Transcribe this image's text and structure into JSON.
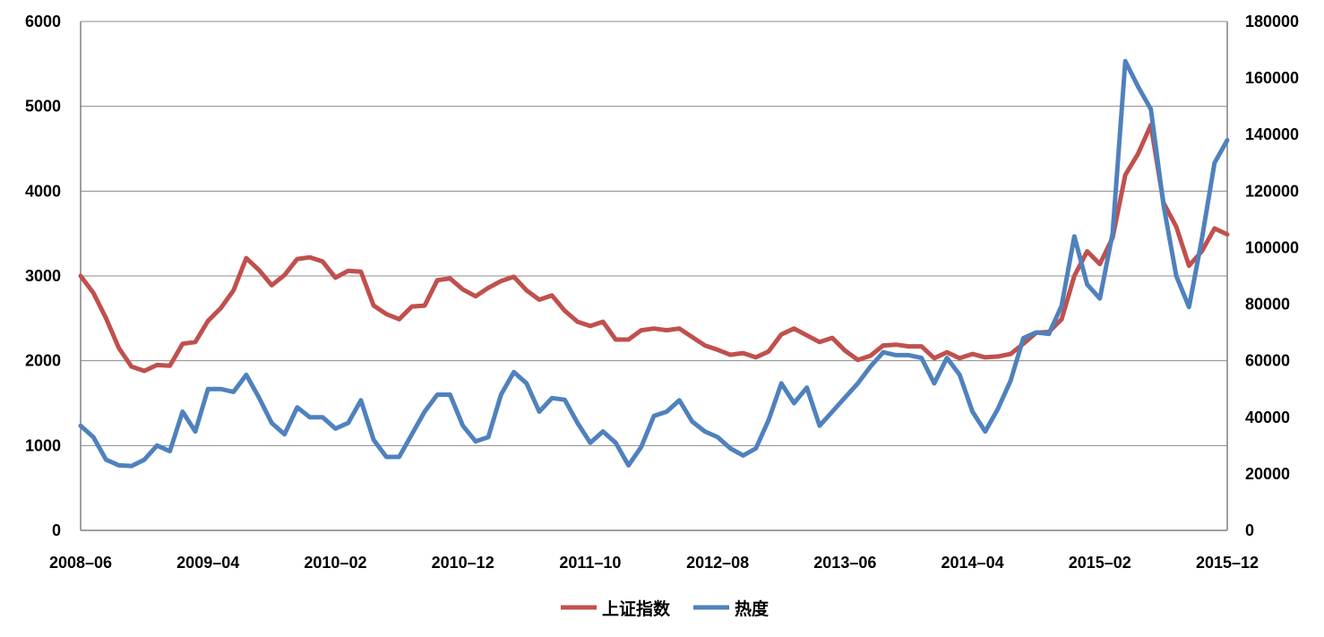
{
  "chart_data": {
    "type": "line",
    "x_ticks": [
      "2008–06",
      "2009–04",
      "2010–02",
      "2010–12",
      "2011–10",
      "2012–08",
      "2013–06",
      "2014–04",
      "2015–02",
      "2015–12"
    ],
    "y_left_ticks": [
      "0",
      "1000",
      "2000",
      "3000",
      "4000",
      "5000",
      "6000"
    ],
    "y_right_ticks": [
      "0",
      "20000",
      "40000",
      "60000",
      "80000",
      "100000",
      "120000",
      "140000",
      "160000",
      "180000"
    ],
    "ylim_left": [
      0,
      6000
    ],
    "ylim_right": [
      0,
      180000
    ],
    "grid": "horizontal",
    "legend_position": "bottom",
    "series": [
      {
        "name": "上证指数",
        "axis": "left",
        "color": "#c0504d",
        "values": [
          3000,
          2800,
          2500,
          2150,
          1930,
          1880,
          1950,
          1940,
          2200,
          2220,
          2470,
          2620,
          2830,
          3210,
          3070,
          2890,
          3010,
          3200,
          3220,
          3170,
          2980,
          3060,
          3050,
          2650,
          2550,
          2490,
          2640,
          2650,
          2950,
          2970,
          2840,
          2760,
          2860,
          2940,
          2990,
          2830,
          2720,
          2770,
          2590,
          2460,
          2410,
          2460,
          2250,
          2250,
          2360,
          2380,
          2360,
          2380,
          2280,
          2180,
          2130,
          2070,
          2090,
          2040,
          2110,
          2310,
          2380,
          2300,
          2220,
          2270,
          2120,
          2010,
          2060,
          2180,
          2190,
          2170,
          2170,
          2030,
          2100,
          2030,
          2080,
          2040,
          2050,
          2080,
          2200,
          2330,
          2340,
          2490,
          3000,
          3290,
          3140,
          3450,
          4190,
          4440,
          4780,
          3860,
          3580,
          3120,
          3290,
          3560,
          3490
        ]
      },
      {
        "name": "热度",
        "axis": "right",
        "color": "#4f81bd",
        "values": [
          37000,
          33000,
          25000,
          23000,
          22800,
          25000,
          30000,
          28000,
          42000,
          35000,
          50000,
          50000,
          49000,
          55000,
          47000,
          38000,
          34000,
          43500,
          40000,
          40000,
          36000,
          38000,
          46000,
          32000,
          26000,
          26000,
          34000,
          42000,
          48000,
          48000,
          37000,
          31500,
          33000,
          48000,
          56000,
          52000,
          42000,
          46800,
          46200,
          38000,
          31000,
          35000,
          31000,
          23000,
          29500,
          40500,
          42000,
          46000,
          38500,
          35000,
          33000,
          29000,
          26500,
          29000,
          39000,
          52000,
          45000,
          50500,
          37000,
          42000,
          47000,
          52000,
          58000,
          63000,
          62000,
          62000,
          61000,
          52000,
          61000,
          55000,
          42000,
          35000,
          43000,
          53000,
          68000,
          70000,
          69500,
          79500,
          104000,
          87000,
          82000,
          105000,
          166000,
          157000,
          149000,
          115000,
          90000,
          79000,
          103000,
          130000,
          138000
        ]
      }
    ]
  }
}
